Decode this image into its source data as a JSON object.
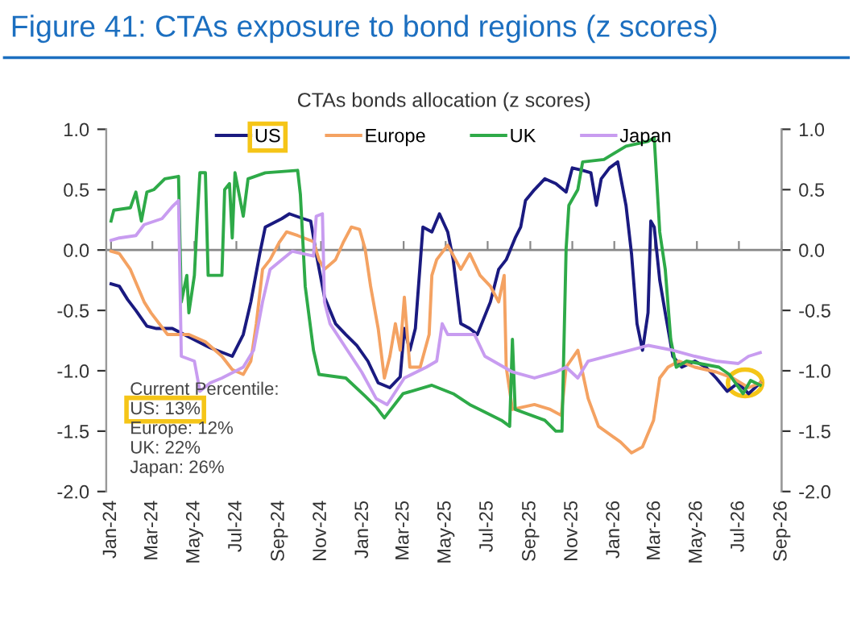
{
  "chart_data": {
    "type": "line",
    "title": "Figure 41: CTAs exposure to bond regions (z scores)",
    "subtitle": "CTAs bonds allocation (z scores)",
    "series": [
      {
        "name": "US",
        "color": "#1a1a80",
        "x": [
          "2024-01-01",
          "2024-01-13",
          "2024-01-25",
          "2024-02-06",
          "2024-02-22",
          "2024-03-07",
          "2024-03-30",
          "2024-04-23",
          "2024-05-24",
          "2024-06-25",
          "2024-07-11",
          "2024-07-22",
          "2024-08-04",
          "2024-08-12",
          "2024-09-05",
          "2024-09-16",
          "2024-10-06",
          "2024-10-17",
          "2024-10-25",
          "2024-11-06",
          "2024-11-22",
          "2024-12-07",
          "2024-12-23",
          "2025-01-08",
          "2025-01-23",
          "2025-02-09",
          "2025-02-24",
          "2025-03-02",
          "2025-03-10",
          "2025-03-18",
          "2025-03-29",
          "2025-04-11",
          "2025-04-22",
          "2025-05-04",
          "2025-05-12",
          "2025-05-23",
          "2025-06-05",
          "2025-06-16",
          "2025-07-05",
          "2025-07-17",
          "2025-07-28",
          "2025-08-10",
          "2025-08-18",
          "2025-08-25",
          "2025-09-07",
          "2025-09-22",
          "2025-10-08",
          "2025-10-23",
          "2025-11-01",
          "2025-11-16",
          "2025-11-28",
          "2025-12-06",
          "2025-12-13",
          "2025-12-25",
          "2026-01-06",
          "2026-01-18",
          "2026-01-26",
          "2026-02-03",
          "2026-02-11",
          "2026-02-19",
          "2026-02-23",
          "2026-02-28",
          "2026-03-08",
          "2026-03-16",
          "2026-03-27",
          "2026-04-09",
          "2026-04-28",
          "2026-05-14",
          "2026-05-29",
          "2026-06-14",
          "2026-06-30",
          "2026-07-15",
          "2026-08-01"
        ],
        "values": [
          -0.28,
          -0.3,
          -0.41,
          -0.5,
          -0.63,
          -0.65,
          -0.65,
          -0.72,
          -0.81,
          -0.88,
          -0.7,
          -0.43,
          -0.03,
          0.19,
          0.26,
          0.3,
          0.26,
          0.24,
          -0.03,
          -0.39,
          -0.61,
          -0.7,
          -0.79,
          -0.92,
          -1.1,
          -1.14,
          -1.05,
          -0.65,
          -0.83,
          -0.65,
          0.19,
          0.15,
          0.3,
          0.15,
          -0.08,
          -0.61,
          -0.65,
          -0.7,
          -0.43,
          -0.16,
          -0.08,
          0.1,
          0.19,
          0.41,
          0.5,
          0.59,
          0.55,
          0.48,
          0.68,
          0.66,
          0.64,
          0.37,
          0.59,
          0.68,
          0.73,
          0.37,
          -0.03,
          -0.61,
          -0.83,
          -0.52,
          0.24,
          0.19,
          -0.25,
          -0.52,
          -0.88,
          -0.97,
          -0.92,
          -0.97,
          -1.06,
          -1.17,
          -1.1,
          -1.19,
          -1.1
        ]
      },
      {
        "name": "Europe",
        "color": "#f4a262",
        "x": [
          "2024-01-01",
          "2024-01-13",
          "2024-01-29",
          "2024-02-18",
          "2024-02-28",
          "2024-03-23",
          "2024-04-23",
          "2024-05-17",
          "2024-06-10",
          "2024-06-25",
          "2024-07-11",
          "2024-07-22",
          "2024-07-30",
          "2024-08-08",
          "2024-08-19",
          "2024-09-01",
          "2024-09-12",
          "2024-09-28",
          "2024-10-21",
          "2024-10-29",
          "2024-11-06",
          "2024-11-22",
          "2024-12-03",
          "2024-12-15",
          "2024-12-27",
          "2025-01-04",
          "2025-01-12",
          "2025-01-23",
          "2025-02-01",
          "2025-02-09",
          "2025-02-17",
          "2025-02-24",
          "2025-03-02",
          "2025-03-10",
          "2025-03-25",
          "2025-04-07",
          "2025-04-11",
          "2025-04-18",
          "2025-05-04",
          "2025-05-23",
          "2025-06-05",
          "2025-06-20",
          "2025-07-05",
          "2025-07-17",
          "2025-07-25",
          "2025-07-28",
          "2025-08-06",
          "2025-09-07",
          "2025-09-30",
          "2025-10-16",
          "2025-10-23",
          "2025-11-09",
          "2025-11-24",
          "2025-12-09",
          "2026-01-10",
          "2026-01-26",
          "2026-02-11",
          "2026-02-27",
          "2026-03-08",
          "2026-03-20",
          "2026-04-05",
          "2026-04-28",
          "2026-05-29",
          "2026-06-22",
          "2026-07-15",
          "2026-08-01"
        ],
        "values": [
          -0.01,
          -0.03,
          -0.16,
          -0.43,
          -0.52,
          -0.7,
          -0.7,
          -0.76,
          -0.88,
          -0.99,
          -1.03,
          -0.92,
          -0.61,
          -0.16,
          -0.08,
          0.06,
          0.15,
          0.12,
          0.07,
          -0.08,
          -0.16,
          -0.08,
          0.06,
          0.19,
          0.17,
          0.01,
          -0.3,
          -0.65,
          -1.06,
          -0.88,
          -0.61,
          -0.83,
          -0.39,
          -0.97,
          -0.97,
          -0.7,
          -0.21,
          -0.08,
          0.04,
          -0.16,
          -0.03,
          -0.21,
          -0.3,
          -0.43,
          -0.21,
          -0.97,
          -1.32,
          -1.28,
          -1.32,
          -1.37,
          -0.97,
          -0.83,
          -1.23,
          -1.46,
          -1.59,
          -1.68,
          -1.63,
          -1.41,
          -1.06,
          -0.97,
          -0.92,
          -0.97,
          -1.01,
          -1.06,
          -1.14,
          -1.1
        ]
      },
      {
        "name": "UK",
        "color": "#2eaa48",
        "x": [
          "2024-01-01",
          "2024-01-05",
          "2024-01-29",
          "2024-02-06",
          "2024-02-14",
          "2024-02-22",
          "2024-03-03",
          "2024-03-19",
          "2024-04-08",
          "2024-04-12",
          "2024-04-20",
          "2024-04-23",
          "2024-05-01",
          "2024-05-05",
          "2024-05-09",
          "2024-05-17",
          "2024-05-21",
          "2024-06-10",
          "2024-06-14",
          "2024-06-21",
          "2024-06-25",
          "2024-06-29",
          "2024-07-11",
          "2024-07-18",
          "2024-08-12",
          "2024-09-28",
          "2024-10-02",
          "2024-10-09",
          "2024-10-21",
          "2024-10-29",
          "2024-12-07",
          "2025-01-04",
          "2025-01-20",
          "2025-02-01",
          "2025-02-28",
          "2025-04-11",
          "2025-05-12",
          "2025-06-05",
          "2025-07-21",
          "2025-08-02",
          "2025-08-06",
          "2025-08-10",
          "2025-09-22",
          "2025-10-08",
          "2025-10-17",
          "2025-10-23",
          "2025-10-27",
          "2025-11-09",
          "2025-11-16",
          "2025-12-17",
          "2026-01-18",
          "2026-02-19",
          "2026-02-28",
          "2026-03-08",
          "2026-03-16",
          "2026-03-24",
          "2026-04-01",
          "2026-04-16",
          "2026-06-02",
          "2026-06-17",
          "2026-07-07",
          "2026-07-18",
          "2026-08-01"
        ],
        "values": [
          0.24,
          0.33,
          0.35,
          0.48,
          0.24,
          0.48,
          0.5,
          0.59,
          0.61,
          -0.43,
          -0.21,
          -0.52,
          -0.21,
          0.24,
          0.64,
          0.64,
          -0.21,
          -0.21,
          0.5,
          0.55,
          0.1,
          0.64,
          0.28,
          0.59,
          0.64,
          0.66,
          0.46,
          -0.3,
          -0.83,
          -1.03,
          -1.06,
          -1.21,
          -1.3,
          -1.39,
          -1.19,
          -1.12,
          -1.19,
          -1.28,
          -1.41,
          -1.46,
          -0.74,
          -1.32,
          -1.41,
          -1.5,
          -1.5,
          0.01,
          0.37,
          0.5,
          0.73,
          0.75,
          0.86,
          0.9,
          0.93,
          0.15,
          -0.16,
          -0.74,
          -0.97,
          -0.92,
          -0.97,
          -1.03,
          -1.19,
          -1.08,
          -1.12
        ]
      },
      {
        "name": "Japan",
        "color": "#c89cf0",
        "x": [
          "2024-01-01",
          "2024-01-13",
          "2024-02-06",
          "2024-02-18",
          "2024-03-15",
          "2024-03-30",
          "2024-04-08",
          "2024-04-12",
          "2024-05-01",
          "2024-05-09",
          "2024-05-24",
          "2024-06-10",
          "2024-07-11",
          "2024-07-26",
          "2024-08-08",
          "2024-08-19",
          "2024-09-05",
          "2024-09-20",
          "2024-10-21",
          "2024-10-25",
          "2024-11-03",
          "2024-11-06",
          "2024-11-14",
          "2024-12-15",
          "2024-12-30",
          "2025-01-20",
          "2025-02-05",
          "2025-03-02",
          "2025-04-03",
          "2025-04-18",
          "2025-04-26",
          "2025-05-04",
          "2025-06-12",
          "2025-06-27",
          "2025-08-06",
          "2025-09-07",
          "2025-10-08",
          "2025-10-23",
          "2025-11-09",
          "2025-11-24",
          "2026-01-10",
          "2026-02-19",
          "2026-03-27",
          "2026-04-28",
          "2026-05-29",
          "2026-06-30",
          "2026-07-15",
          "2026-08-01"
        ],
        "values": [
          0.08,
          0.1,
          0.12,
          0.21,
          0.26,
          0.36,
          0.41,
          -0.88,
          -0.92,
          -1.17,
          -1.1,
          -1.06,
          -0.97,
          -0.83,
          -0.43,
          -0.16,
          -0.08,
          -0.01,
          -0.05,
          0.28,
          0.3,
          -0.43,
          -0.61,
          -0.88,
          -1.01,
          -1.23,
          -1.28,
          -1.06,
          -0.97,
          -0.92,
          -0.61,
          -0.7,
          -0.7,
          -0.88,
          -1.01,
          -1.06,
          -1.01,
          -0.97,
          -1.06,
          -0.92,
          -0.85,
          -0.79,
          -0.83,
          -0.88,
          -0.92,
          -0.94,
          -0.88,
          -0.85
        ]
      }
    ],
    "xlim": [
      "2023-12-25",
      "2026-09-01"
    ],
    "xticks": [
      {
        "value": "2024-01-01",
        "label": "Jan-24"
      },
      {
        "value": "2024-03-01",
        "label": "Mar-24"
      },
      {
        "value": "2024-05-01",
        "label": "May-24"
      },
      {
        "value": "2024-07-01",
        "label": "Jul-24"
      },
      {
        "value": "2024-09-01",
        "label": "Sep-24"
      },
      {
        "value": "2024-11-01",
        "label": "Nov-24"
      },
      {
        "value": "2025-01-01",
        "label": "Jan-25"
      },
      {
        "value": "2025-03-01",
        "label": "Mar-25"
      },
      {
        "value": "2025-05-01",
        "label": "May-25"
      },
      {
        "value": "2025-07-01",
        "label": "Jul-25"
      },
      {
        "value": "2025-09-01",
        "label": "Sep-25"
      },
      {
        "value": "2025-11-01",
        "label": "Nov-25"
      },
      {
        "value": "2026-01-01",
        "label": "Jan-26"
      },
      {
        "value": "2026-03-01",
        "label": "Mar-26"
      },
      {
        "value": "2026-05-01",
        "label": "May-26"
      },
      {
        "value": "2026-07-01",
        "label": "Jul-26"
      },
      {
        "value": "2026-09-01",
        "label": "Sep-26"
      }
    ],
    "ylim": [
      -2,
      1
    ],
    "yticks": [
      {
        "value": 1,
        "label": "1.0"
      },
      {
        "value": 0.5,
        "label": "0.5"
      },
      {
        "value": 0,
        "label": "0.0"
      },
      {
        "value": -0.5,
        "label": "-0.5"
      },
      {
        "value": -1,
        "label": "-1.0"
      },
      {
        "value": -1.5,
        "label": "-1.5"
      },
      {
        "value": -2,
        "label": "-2.0"
      }
    ],
    "y2lim": [
      -2,
      1
    ],
    "y2ticks": [
      {
        "value": 1,
        "label": "1.0"
      },
      {
        "value": 0.5,
        "label": "0.5"
      },
      {
        "value": 0,
        "label": "0.0"
      },
      {
        "value": -0.5,
        "label": "-0.5"
      },
      {
        "value": -1,
        "label": "-1.0"
      },
      {
        "value": -1.5,
        "label": "-1.5"
      },
      {
        "value": -2,
        "label": "-2.0"
      }
    ],
    "annotations": [
      "Current Percentile:",
      "US: 13%",
      "Europe: 12%",
      "UK: 22%",
      "Japan: 26%"
    ],
    "ref_lines": [
      {
        "axis": "y",
        "value": 0,
        "color": "#888888"
      }
    ],
    "legend": "top",
    "grid": false,
    "line_style": "solid",
    "marker": "none"
  }
}
